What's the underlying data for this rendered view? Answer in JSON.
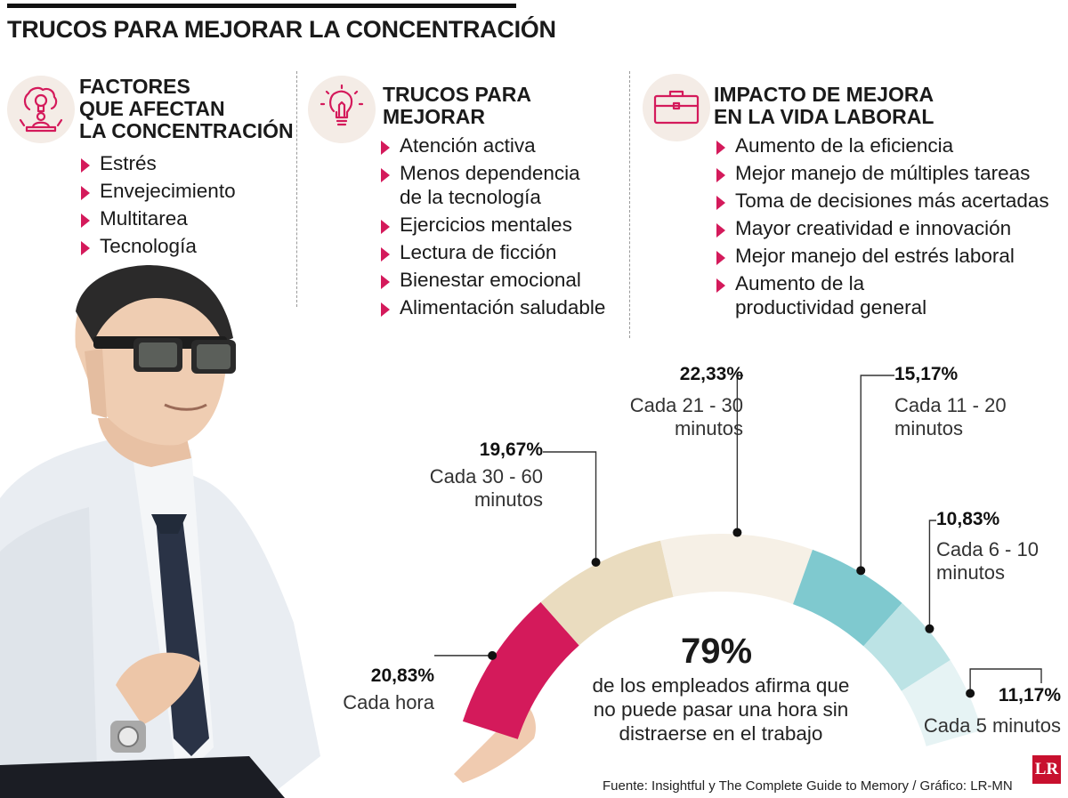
{
  "title": "TRUCOS PARA MEJORAR LA CONCENTRACIÓN",
  "columns": [
    {
      "icon": "brain-lightbulb-icon",
      "heading": [
        "FACTORES",
        "QUE AFECTAN",
        "LA CONCENTRACIÓN"
      ],
      "items": [
        [
          "Estrés"
        ],
        [
          "Envejecimiento"
        ],
        [
          "Multitarea"
        ],
        [
          "Tecnología"
        ]
      ]
    },
    {
      "icon": "lightbulb-icon",
      "heading": [
        "TRUCOS PARA",
        "MEJORAR"
      ],
      "items": [
        [
          "Atención activa"
        ],
        [
          "Menos dependencia",
          "de la tecnología"
        ],
        [
          "Ejercicios mentales"
        ],
        [
          "Lectura de ficción"
        ],
        [
          "Bienestar emocional"
        ],
        [
          "Alimentación saludable"
        ]
      ]
    },
    {
      "icon": "briefcase-icon",
      "heading": [
        "IMPACTO DE MEJORA",
        "EN LA VIDA LABORAL"
      ],
      "items": [
        [
          "Aumento de la eficiencia"
        ],
        [
          "Mejor manejo de múltiples tareas"
        ],
        [
          "Toma de decisiones más acertadas"
        ],
        [
          "Mayor creatividad e innovación"
        ],
        [
          "Mejor manejo del estrés laboral"
        ],
        [
          "Aumento de la",
          "productividad general"
        ]
      ]
    }
  ],
  "chart_data": {
    "type": "pie",
    "style": "semicircle",
    "slices": [
      {
        "value_label": "20,83%",
        "value": 20.83,
        "label": [
          "Cada hora"
        ],
        "color": "#d41a5b"
      },
      {
        "value_label": "19,67%",
        "value": 19.67,
        "label": [
          "Cada 30 - 60",
          "minutos"
        ],
        "color": "#eadcbf"
      },
      {
        "value_label": "22,33%",
        "value": 22.33,
        "label": [
          "Cada 21 - 30",
          "minutos"
        ],
        "color": "#f6f0e6"
      },
      {
        "value_label": "15,17%",
        "value": 15.17,
        "label": [
          "Cada 11 - 20",
          "minutos"
        ],
        "color": "#7fc9cf"
      },
      {
        "value_label": "10,83%",
        "value": 10.83,
        "label": [
          "Cada 6 - 10",
          "minutos"
        ],
        "color": "#bce3e5"
      },
      {
        "value_label": "11,17%",
        "value": 11.17,
        "label": [
          "Cada 5 minutos"
        ],
        "color": "#e6f3f4"
      }
    ],
    "center_value": "79%",
    "center_text": [
      "de los empleados afirma que",
      "no puede pasar una hora sin",
      "distraerse en el trabajo"
    ]
  },
  "footer": "Fuente: Insightful y The Complete Guide to Memory / Gráfico: LR-MN",
  "logo_text": "LR",
  "colors": {
    "accent": "#d41a5b",
    "icon_bg": "#f4ece6"
  }
}
